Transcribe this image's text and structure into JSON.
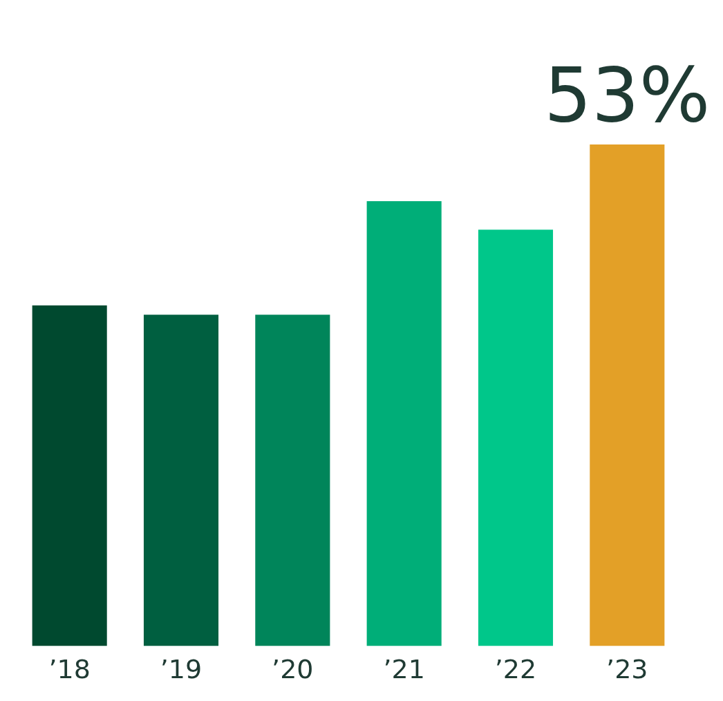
{
  "chart_data": {
    "type": "bar",
    "categories": [
      "’18",
      "’19",
      "’20",
      "’21",
      "’22",
      "’23"
    ],
    "values": [
      36,
      35,
      35,
      47,
      44,
      53
    ],
    "colors": [
      "#00492f",
      "#005f40",
      "#00855a",
      "#00ae78",
      "#00c78a",
      "#e3a027"
    ],
    "value_labels": [
      null,
      null,
      null,
      null,
      null,
      "53%"
    ],
    "grid": false,
    "legend": false,
    "tick_labels": "x"
  }
}
